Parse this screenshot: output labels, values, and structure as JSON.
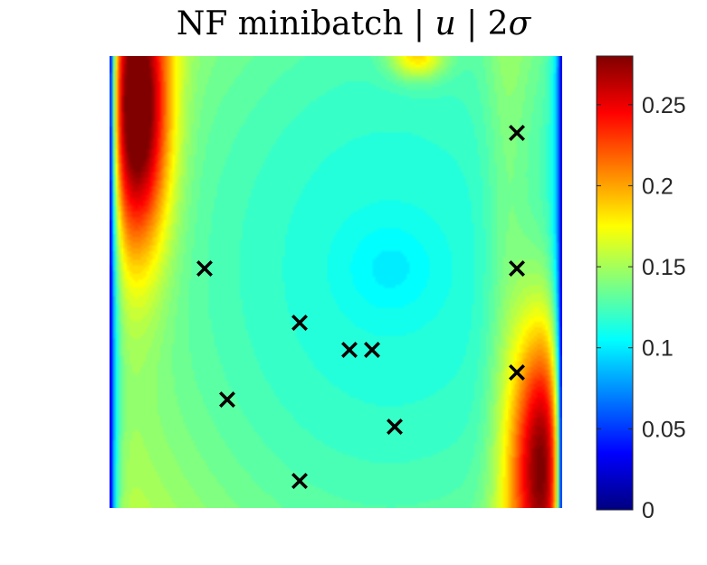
{
  "chart_data": {
    "type": "heatmap",
    "title_parts": [
      "NF minibatch | ",
      "u",
      " | 2",
      "σ"
    ],
    "colormap": "jet",
    "colorbar": {
      "range": [
        0,
        0.28
      ],
      "ticks": [
        0,
        0.05,
        0.1,
        0.15,
        0.2,
        0.25
      ],
      "tick_labels": [
        "0",
        "0.05",
        "0.1",
        "0.15",
        "0.2",
        "0.25"
      ],
      "position": "right"
    },
    "domain": {
      "x": [
        0,
        1
      ],
      "y": [
        0,
        1
      ]
    },
    "axes_visible": false,
    "grid": false,
    "markers": {
      "symbol": "x",
      "color": "#000000",
      "points": [
        {
          "x": 0.21,
          "y": 0.53
        },
        {
          "x": 0.26,
          "y": 0.24
        },
        {
          "x": 0.42,
          "y": 0.41
        },
        {
          "x": 0.42,
          "y": 0.06
        },
        {
          "x": 0.53,
          "y": 0.35
        },
        {
          "x": 0.58,
          "y": 0.35
        },
        {
          "x": 0.63,
          "y": 0.18
        },
        {
          "x": 0.9,
          "y": 0.83
        },
        {
          "x": 0.9,
          "y": 0.53
        },
        {
          "x": 0.9,
          "y": 0.3
        }
      ]
    },
    "field_features": [
      {
        "kind": "min",
        "x": 0.62,
        "y": 0.53,
        "value": 0.1
      },
      {
        "kind": "max",
        "x": 0.06,
        "y": 0.88,
        "value": 0.27
      },
      {
        "kind": "max",
        "x": 0.96,
        "y": 0.1,
        "value": 0.26
      },
      {
        "kind": "edge",
        "side": "left",
        "value": 0.0
      },
      {
        "kind": "edge",
        "side": "right",
        "value": 0.0
      }
    ]
  }
}
